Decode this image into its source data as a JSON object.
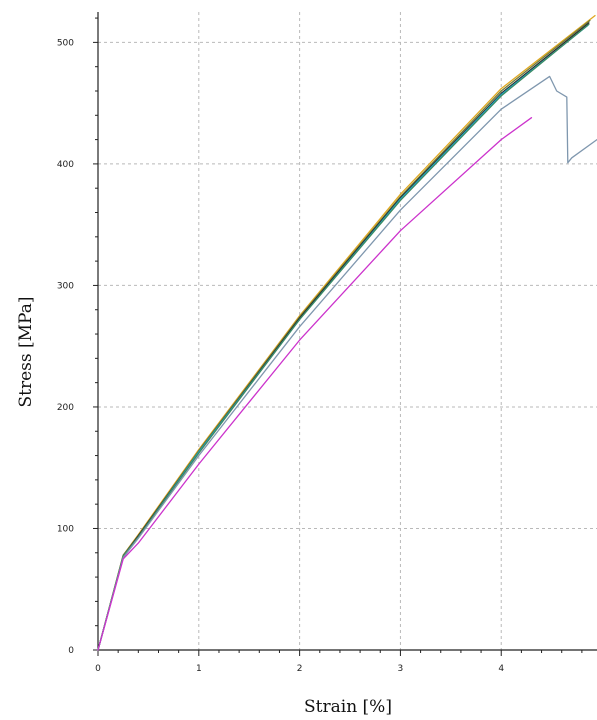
{
  "chart_data": {
    "type": "line",
    "xlabel": "Strain [%]",
    "ylabel": "Stress [MPa]",
    "xlim": [
      0,
      4.95
    ],
    "ylim": [
      0,
      525
    ],
    "x_ticks": [
      "0",
      "1",
      "2",
      "3",
      "4"
    ],
    "y_ticks": [
      "0",
      "100",
      "200",
      "300",
      "400",
      "500"
    ],
    "grid": true,
    "series": [
      {
        "color": "#e0a820",
        "x": [
          0,
          0.25,
          0.4,
          1,
          2,
          3,
          4,
          4.93
        ],
        "y": [
          0,
          78,
          95,
          165,
          275,
          375,
          462,
          522
        ]
      },
      {
        "color": "#6f7a3a",
        "x": [
          0,
          0.25,
          0.4,
          1,
          2,
          3,
          4,
          4.88
        ],
        "y": [
          0,
          78,
          94,
          164,
          274,
          373,
          460,
          518
        ]
      },
      {
        "color": "#2a2a2a",
        "x": [
          0,
          0.25,
          0.4,
          1,
          2,
          3,
          4,
          4.87
        ],
        "y": [
          0,
          77,
          94,
          163,
          273,
          372,
          458,
          516
        ]
      },
      {
        "color": "#1fa7c8",
        "x": [
          0,
          0.25,
          0.4,
          1,
          2,
          3,
          4,
          4.86
        ],
        "y": [
          0,
          77,
          93,
          163,
          272,
          371,
          457,
          514
        ]
      },
      {
        "color": "#3d8a63",
        "x": [
          0,
          0.25,
          0.4,
          1,
          2,
          3,
          4,
          4.87
        ],
        "y": [
          0,
          77,
          93,
          162,
          272,
          370,
          456,
          515
        ]
      },
      {
        "color": "#7f97ae",
        "x": [
          0,
          0.25,
          0.4,
          1,
          2,
          3,
          4,
          4.48,
          4.55,
          4.65,
          4.66,
          4.7,
          4.95
        ],
        "y": [
          0,
          76,
          92,
          160,
          266,
          362,
          445,
          472,
          460,
          455,
          401,
          405,
          420
        ]
      },
      {
        "color": "#cc33cc",
        "x": [
          0,
          0.25,
          0.4,
          1,
          2,
          3,
          4,
          4.3
        ],
        "y": [
          0,
          75,
          88,
          153,
          255,
          345,
          420,
          438
        ]
      }
    ]
  }
}
